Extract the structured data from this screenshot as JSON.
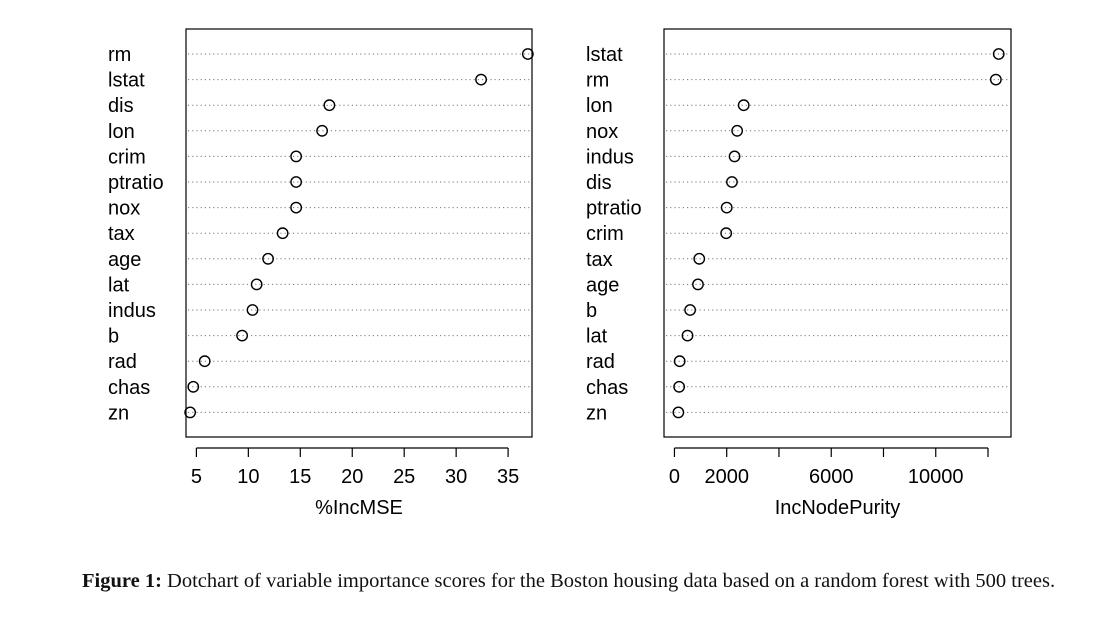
{
  "chart_data": [
    {
      "type": "scatter",
      "variables": [
        "rm",
        "lstat",
        "dis",
        "lon",
        "crim",
        "ptratio",
        "nox",
        "tax",
        "age",
        "lat",
        "indus",
        "b",
        "rad",
        "chas",
        "zn"
      ],
      "values": [
        36.9,
        32.4,
        17.8,
        17.1,
        14.6,
        14.6,
        14.6,
        13.3,
        11.9,
        10.8,
        10.4,
        9.4,
        5.8,
        4.7,
        4.4
      ],
      "xlabel": "%IncMSE",
      "xticks": [
        5,
        10,
        15,
        20,
        25,
        30,
        35
      ],
      "xlim": [
        4.0,
        37.3
      ],
      "grid": "dotted"
    },
    {
      "type": "scatter",
      "variables": [
        "lstat",
        "rm",
        "lon",
        "nox",
        "indus",
        "dis",
        "ptratio",
        "crim",
        "tax",
        "age",
        "b",
        "lat",
        "rad",
        "chas",
        "zn"
      ],
      "values": [
        12410,
        12300,
        2650,
        2400,
        2300,
        2200,
        2000,
        1980,
        950,
        900,
        600,
        500,
        200,
        180,
        150
      ],
      "xlabel": "IncNodePurity",
      "xticks": [
        0,
        2000,
        6000,
        10000
      ],
      "minor_ticks": [
        4000,
        8000,
        12000
      ],
      "xlim": [
        -400,
        12880
      ],
      "grid": "dotted"
    }
  ],
  "caption": {
    "label": "Figure 1:",
    "text": "Dotchart of variable importance scores for the Boston housing data based on a random forest with 500 trees."
  }
}
